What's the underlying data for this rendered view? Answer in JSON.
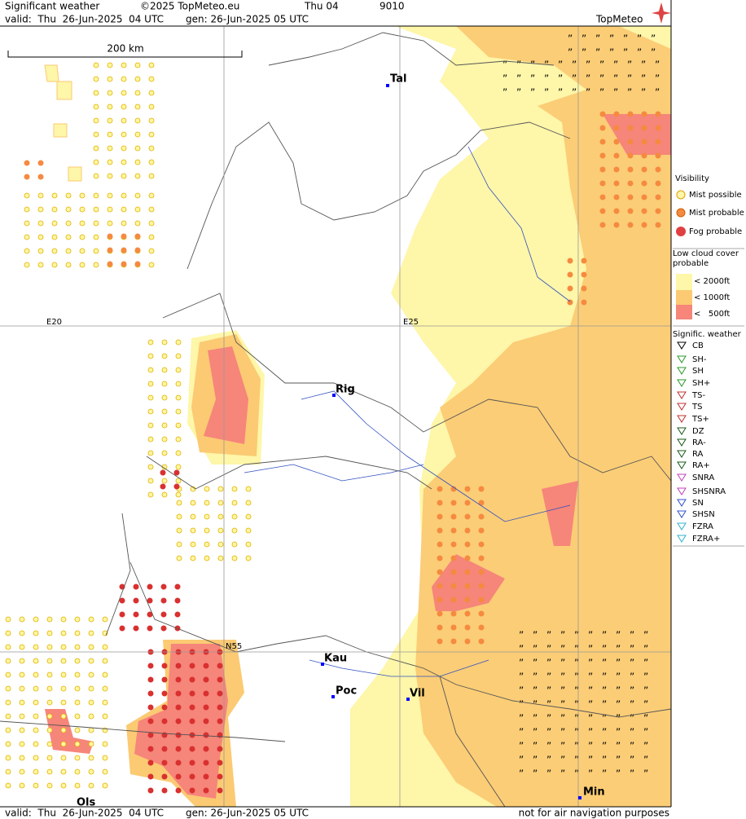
{
  "header": {
    "title": "Significant weather",
    "copyright": "©2025 TopMeteo.eu",
    "run": "Thu 04",
    "code": "9010",
    "valid": "valid:  Thu  26-Jun-2025  04 UTC",
    "generated": "gen: 26-Jun-2025 05 UTC",
    "logo": "TopMeteo"
  },
  "map": {
    "scale": "200 km",
    "grid_labels": [
      "E20",
      "E25",
      "N55"
    ],
    "cities": [
      "Tal",
      "Rig",
      "Kau",
      "Poc",
      "Vil",
      "Min",
      "Ols"
    ]
  },
  "legend": {
    "visibility": {
      "title": "Visibility",
      "items": [
        "Mist possible",
        "Mist probable",
        "Fog probable"
      ]
    },
    "low_cloud": {
      "title": "Low cloud cover probable",
      "items": [
        "< 2000ft",
        "< 1000ft",
        "<   500ft"
      ]
    },
    "weather": {
      "title": "Signific. weather",
      "items": [
        "CB",
        "SH-",
        "SH",
        "SH+",
        "TS-",
        "TS",
        "TS+",
        "DZ",
        "RA-",
        "RA",
        "RA+",
        "SNRA",
        "SHSNRA",
        "SN",
        "SHSN",
        "FZRA",
        "FZRA+"
      ]
    }
  },
  "footer": {
    "valid": "valid:  Thu  26-Jun-2025  04 UTC",
    "generated": "gen: 26-Jun-2025 05 UTC",
    "note": "not for air navigation purposes"
  }
}
